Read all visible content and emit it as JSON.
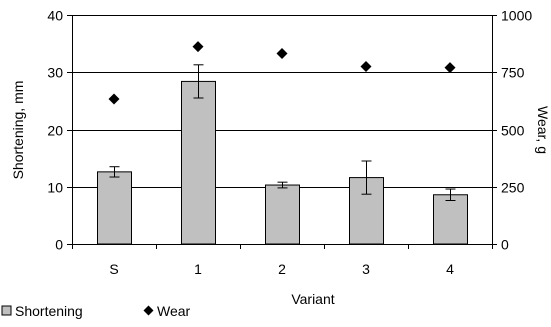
{
  "chart_data": {
    "type": "bar",
    "xlabel": "Variant",
    "categories": [
      "S",
      "1",
      "2",
      "3",
      "4"
    ],
    "y_left": {
      "label": "Shortening, mm",
      "ylim": [
        0,
        40
      ],
      "ticks": [
        0,
        10,
        20,
        30,
        40
      ]
    },
    "y_right": {
      "label": "Wear, g",
      "ylim": [
        0,
        1000
      ],
      "ticks": [
        0,
        250,
        500,
        750,
        1000
      ]
    },
    "grid": true,
    "legend_position": "bottom-left",
    "series": [
      {
        "name": "Shortening",
        "kind": "bar",
        "axis": "left",
        "color": "#c0c0c0",
        "values": [
          12.6,
          28.4,
          10.3,
          11.6,
          8.6
        ],
        "error": [
          0.9,
          2.9,
          0.5,
          2.9,
          1.0
        ]
      },
      {
        "name": "Wear",
        "kind": "scatter",
        "axis": "right",
        "marker": "diamond",
        "color": "#000000",
        "values": [
          633,
          862,
          832,
          775,
          770
        ]
      }
    ]
  }
}
